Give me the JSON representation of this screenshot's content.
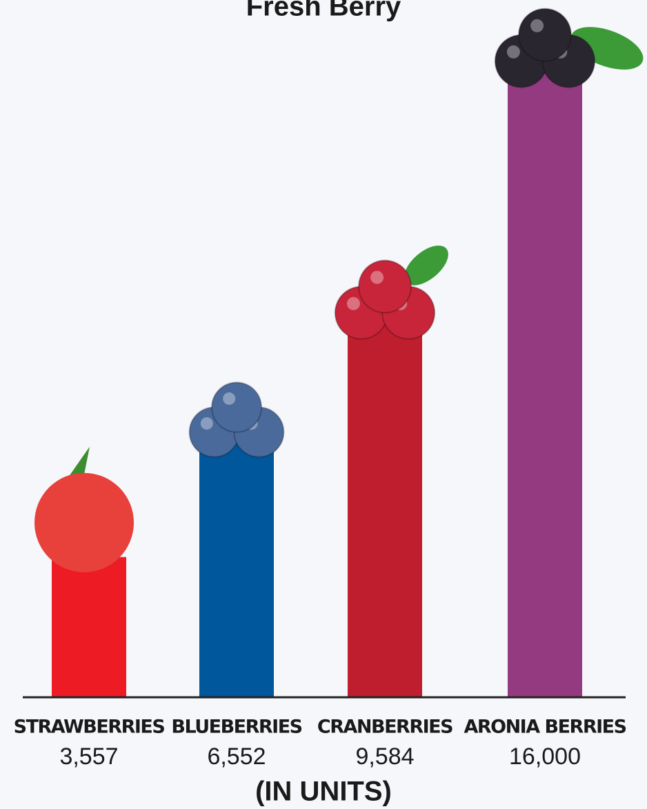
{
  "chart_data": {
    "type": "bar",
    "title": "Fresh Berry",
    "categories": [
      "STRAWBERRIES",
      "BLUEBERRIES",
      "CRANBERRIES",
      "ARONIA BERRIES"
    ],
    "values": [
      3557,
      6552,
      9584,
      16000
    ],
    "value_labels": [
      "3,557",
      "6,552",
      "9,584",
      "16,000"
    ],
    "colors": [
      "#ed1c24",
      "#00579b",
      "#be1e2d",
      "#933a80"
    ],
    "x_label": "(IN UNITS)"
  }
}
